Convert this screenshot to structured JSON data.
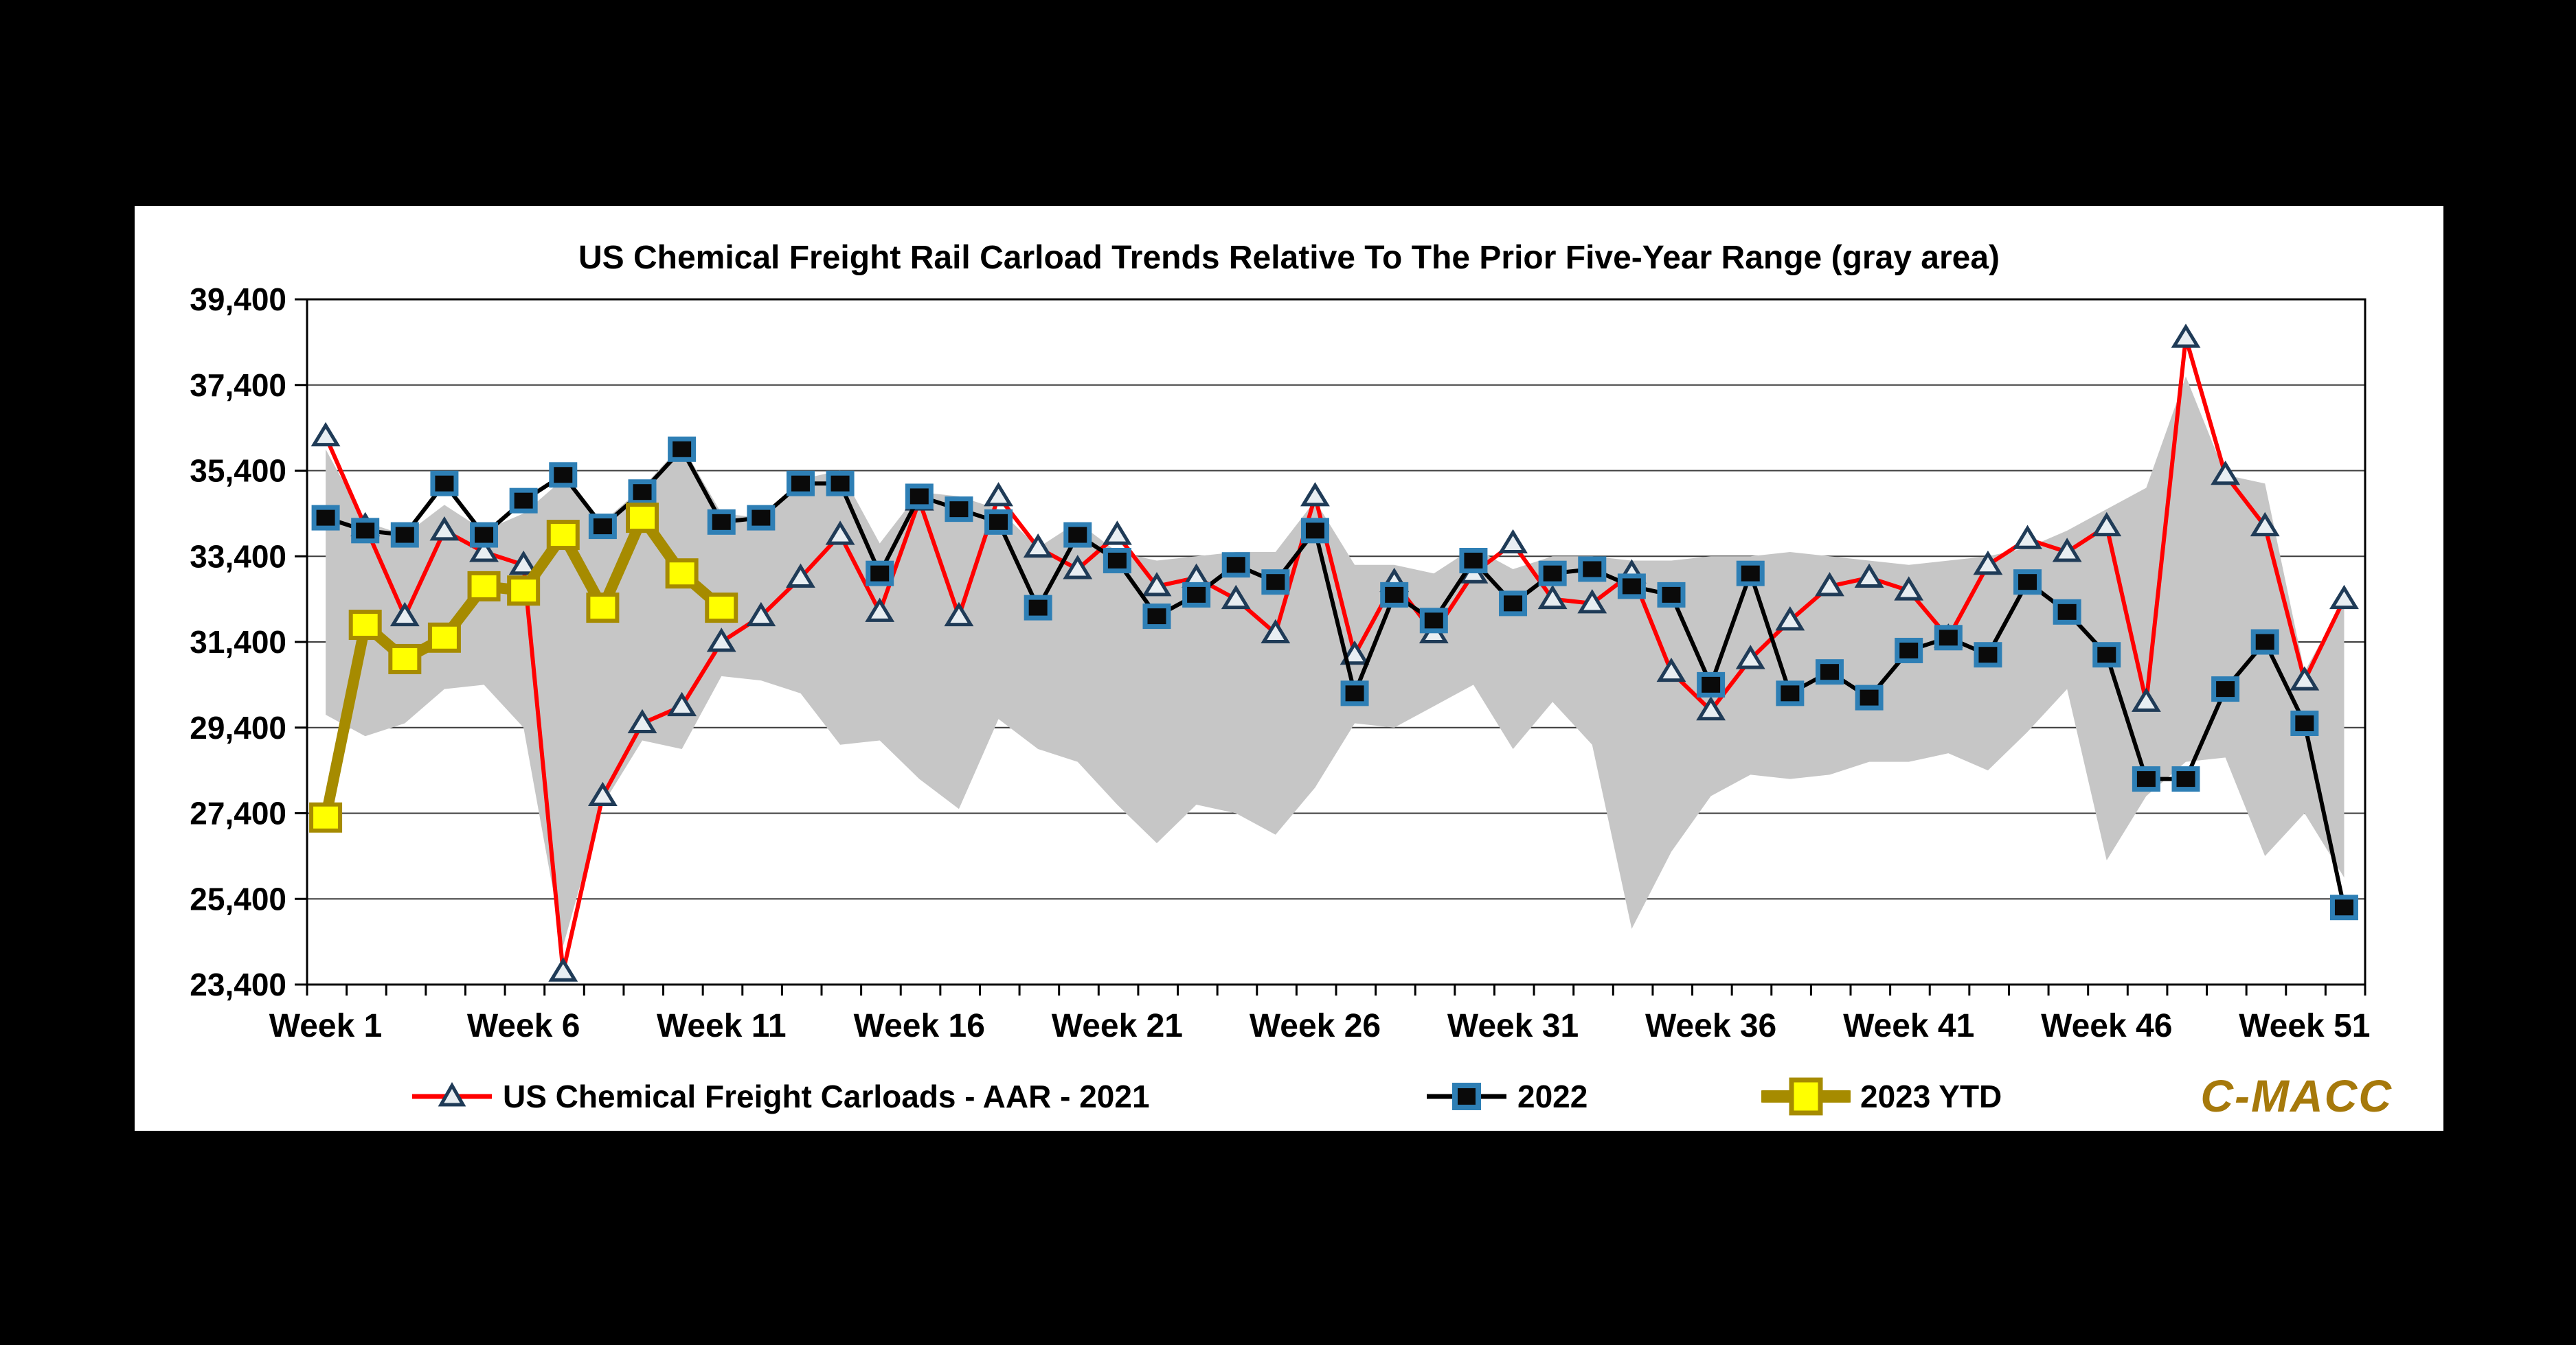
{
  "window": {
    "background": "#000000",
    "panel_background": "#FFFFFF"
  },
  "logo": {
    "text": "C-MACC",
    "color": "#A6790B"
  },
  "chart_data": {
    "type": "line",
    "title": "US Chemical Freight Rail Carload Trends Relative To The Prior Five-Year Range (gray area)",
    "grid": true,
    "legend_position": "bottom",
    "x_axis": {
      "weeks": 52,
      "tick_weeks": [
        1,
        6,
        11,
        16,
        21,
        26,
        31,
        36,
        41,
        46,
        51
      ],
      "tick_labels": [
        "Week 1",
        "Week 6",
        "Week 11",
        "Week 16",
        "Week 21",
        "Week 26",
        "Week 31",
        "Week 36",
        "Week 41",
        "Week 46",
        "Week 51"
      ]
    },
    "y_axis": {
      "min": 23400,
      "max": 39400,
      "ticks": [
        23400,
        25400,
        27400,
        29400,
        31400,
        33400,
        35400,
        37400,
        39400
      ]
    },
    "band": {
      "name": "Prior five-year range",
      "color": "#C6C6C6",
      "upper": [
        35900,
        34200,
        33900,
        34600,
        34000,
        34400,
        35200,
        34200,
        35000,
        36000,
        34400,
        34300,
        35200,
        35400,
        33700,
        34900,
        34800,
        34500,
        33600,
        34200,
        33500,
        33300,
        33400,
        33500,
        33500,
        34700,
        33200,
        33200,
        33000,
        33600,
        33100,
        33400,
        33400,
        33300,
        33300,
        33400,
        33400,
        33500,
        33400,
        33300,
        33200,
        33300,
        33400,
        33600,
        34000,
        34500,
        35000,
        37600,
        35300,
        35100,
        30700,
        32400
      ],
      "lower": [
        29700,
        29200,
        29500,
        30300,
        30400,
        29400,
        24300,
        27600,
        29100,
        28900,
        30600,
        30500,
        30200,
        29000,
        29100,
        28200,
        27500,
        29600,
        28900,
        28600,
        27600,
        26700,
        27600,
        27400,
        26900,
        28000,
        29500,
        29400,
        29900,
        30400,
        28900,
        30000,
        29000,
        24700,
        26500,
        27800,
        28300,
        28200,
        28300,
        28600,
        28600,
        28800,
        28400,
        29300,
        30300,
        26300,
        27800,
        28600,
        28700,
        26400,
        27400,
        25900
      ]
    },
    "series": [
      {
        "name": "US Chemical Freight Carloads - AAR - 2021",
        "color": "#FF0000",
        "marker": "triangle",
        "marker_fill": "#E8EEF2",
        "marker_edge": "#1F3B57",
        "values": [
          36200,
          34100,
          32000,
          34000,
          33500,
          33200,
          23700,
          27800,
          29500,
          29900,
          31400,
          32000,
          32900,
          33900,
          32100,
          34700,
          32000,
          34800,
          33600,
          33100,
          33900,
          32700,
          32900,
          32400,
          31600,
          34800,
          31100,
          32800,
          31600,
          33000,
          33700,
          32400,
          32300,
          33000,
          30700,
          29800,
          31000,
          31900,
          32700,
          32900,
          32600,
          31500,
          33200,
          33800,
          33500,
          34100,
          30000,
          38500,
          35300,
          34100,
          30500,
          32400
        ]
      },
      {
        "name": "2022",
        "color": "#000000",
        "marker": "square",
        "marker_fill": "#0A0A0A",
        "marker_edge": "#2E7FB5",
        "values": [
          34300,
          34000,
          33900,
          35100,
          33900,
          34700,
          35300,
          34100,
          34900,
          35900,
          34200,
          34300,
          35100,
          35100,
          33000,
          34800,
          34500,
          34200,
          32200,
          33900,
          33300,
          32000,
          32500,
          33200,
          32800,
          34000,
          30200,
          32500,
          31900,
          33300,
          32300,
          33000,
          33100,
          32700,
          32500,
          30400,
          33000,
          30200,
          30700,
          30100,
          31200,
          31500,
          31100,
          32800,
          32100,
          31100,
          28200,
          28200,
          30300,
          31400,
          29500,
          25200
        ]
      },
      {
        "name": "2023 YTD",
        "color": "#A68B00",
        "marker": "big-square",
        "marker_fill": "#FFFF00",
        "marker_edge": "#A68B00",
        "values": [
          27300,
          31800,
          31000,
          31500,
          32700,
          32600,
          33900,
          32200,
          34300,
          33000,
          32200
        ]
      }
    ]
  }
}
